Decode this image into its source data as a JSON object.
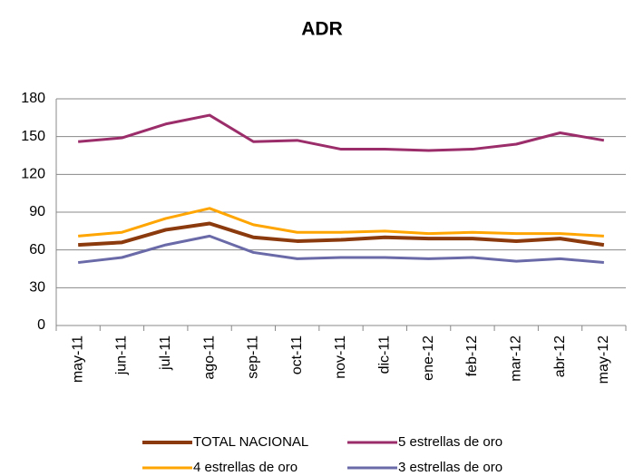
{
  "chart_data": {
    "type": "line",
    "title": "ADR",
    "categories": [
      "may-11",
      "jun-11",
      "jul-11",
      "ago-11",
      "sep-11",
      "oct-11",
      "nov-11",
      "dic-11",
      "ene-12",
      "feb-12",
      "mar-12",
      "abr-12",
      "may-12"
    ],
    "series": [
      {
        "name": "TOTAL NACIONAL",
        "color": "#8b3a0e",
        "values": [
          64,
          66,
          76,
          81,
          70,
          67,
          68,
          70,
          69,
          69,
          67,
          69,
          64
        ]
      },
      {
        "name": "5 estrellas de oro",
        "color": "#9b2d6a",
        "values": [
          146,
          149,
          160,
          167,
          146,
          147,
          140,
          140,
          139,
          140,
          144,
          153,
          147
        ]
      },
      {
        "name": "4 estrellas de oro",
        "color": "#ffa500",
        "values": [
          71,
          74,
          85,
          93,
          80,
          74,
          74,
          75,
          73,
          74,
          73,
          73,
          71
        ]
      },
      {
        "name": "3 estrellas de oro",
        "color": "#6a6aa8",
        "values": [
          50,
          54,
          64,
          71,
          58,
          53,
          54,
          54,
          53,
          54,
          51,
          53,
          50
        ]
      }
    ],
    "ylim": [
      0,
      180
    ],
    "yticks": [
      0,
      30,
      60,
      90,
      120,
      150,
      180
    ],
    "grid": true
  }
}
